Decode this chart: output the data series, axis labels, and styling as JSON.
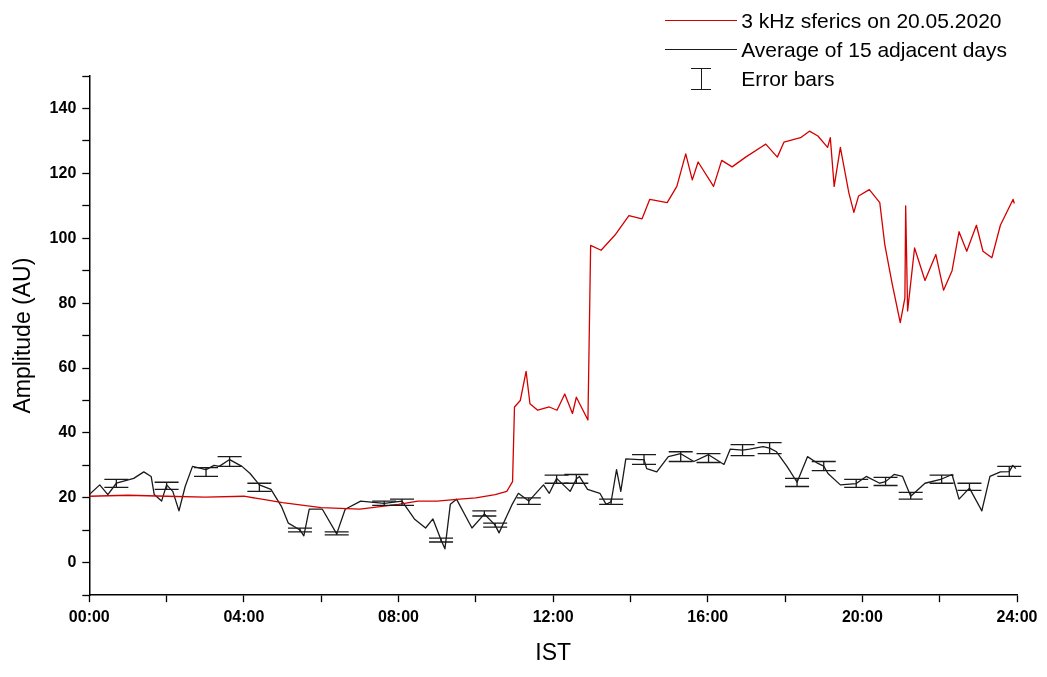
{
  "chart_data": {
    "type": "line",
    "xlabel": "IST",
    "ylabel": "Amplitude (AU)",
    "xlim": [
      0,
      24
    ],
    "xticks": [
      {
        "value": 0,
        "label": "00:00"
      },
      {
        "value": 2,
        "label": null
      },
      {
        "value": 4,
        "label": "04:00"
      },
      {
        "value": 6,
        "label": null
      },
      {
        "value": 8,
        "label": "08:00"
      },
      {
        "value": 10,
        "label": null
      },
      {
        "value": 12,
        "label": "12:00"
      },
      {
        "value": 14,
        "label": null
      },
      {
        "value": 16,
        "label": "16:00"
      },
      {
        "value": 18,
        "label": null
      },
      {
        "value": 20,
        "label": "20:00"
      },
      {
        "value": 22,
        "label": null
      },
      {
        "value": 24,
        "label": "24:00"
      }
    ],
    "ylim": [
      -10,
      150
    ],
    "yticks": [
      {
        "value": -10,
        "label": null
      },
      0,
      {
        "value": 10,
        "label": null
      },
      20,
      {
        "value": 30,
        "label": null
      },
      40,
      {
        "value": 50,
        "label": null
      },
      60,
      {
        "value": 70,
        "label": null
      },
      80,
      {
        "value": 90,
        "label": null
      },
      100,
      {
        "value": 110,
        "label": null
      },
      120,
      {
        "value": 130,
        "label": null
      },
      140,
      {
        "value": 150,
        "label": null
      }
    ],
    "grid": false,
    "legend": "top right",
    "marker": "none",
    "line_style": "solid",
    "annotations": [
      "Error bars"
    ],
    "series": [
      {
        "name": "3 kHz sferics on 20.05.2020",
        "color": "#d40000",
        "x": [
          0,
          1,
          2,
          3,
          4,
          4.5,
          5,
          6,
          7,
          8,
          8.5,
          9,
          9.5,
          10,
          10.5,
          10.8,
          10.95,
          11.0,
          11.15,
          11.3,
          11.4,
          11.6,
          11.9,
          12.1,
          12.3,
          12.5,
          12.6,
          12.9,
          12.97,
          13.24,
          13.6,
          13.96,
          14.3,
          14.5,
          14.95,
          15.2,
          15.43,
          15.6,
          15.75,
          16.15,
          16.36,
          16.63,
          16.98,
          17.5,
          17.8,
          17.97,
          18.4,
          18.63,
          18.85,
          19.1,
          19.17,
          19.27,
          19.43,
          19.65,
          19.78,
          19.9,
          20.18,
          20.45,
          20.58,
          20.77,
          20.98,
          21.1,
          21.12,
          21.17,
          21.35,
          21.62,
          21.9,
          22.1,
          22.32,
          22.5,
          22.7,
          22.95,
          23.12,
          23.35,
          23.57,
          23.9,
          23.93
        ],
        "values": [
          20.5,
          20.8,
          20.5,
          20.2,
          20.5,
          19.5,
          18.5,
          17.0,
          16.5,
          18.0,
          19.0,
          19.0,
          19.5,
          20.0,
          21.0,
          22.0,
          25.0,
          48.0,
          50.0,
          59.0,
          49.0,
          47.0,
          48.0,
          47.0,
          52.0,
          46.0,
          51.0,
          44.0,
          97.8,
          96.3,
          101,
          107,
          106,
          112,
          111,
          116,
          126,
          118,
          123.5,
          116,
          124,
          122,
          125,
          129,
          125,
          129.6,
          131,
          133,
          131.5,
          128,
          131,
          116,
          128,
          114,
          108,
          113,
          115,
          111,
          98,
          86,
          74,
          81.6,
          110,
          77.6,
          97,
          87,
          95,
          84,
          90,
          102,
          96,
          104,
          96,
          94,
          104,
          112,
          110.7
        ]
      },
      {
        "name": "Average of 15 adjacent days",
        "color": "#1a1a1a",
        "x": [
          0,
          0.27,
          0.48,
          0.7,
          1.15,
          1.41,
          1.6,
          1.68,
          1.87,
          2.0,
          2.16,
          2.32,
          2.48,
          2.67,
          3.02,
          3.23,
          3.36,
          3.63,
          3.95,
          4.16,
          4.4,
          4.7,
          4.97,
          5.15,
          5.45,
          5.55,
          5.69,
          6.03,
          6.4,
          6.62,
          7.02,
          7.63,
          8.09,
          8.41,
          8.7,
          8.89,
          9.1,
          9.2,
          9.34,
          9.5,
          9.9,
          10.22,
          10.5,
          10.6,
          10.94,
          11.1,
          11.37,
          11.75,
          11.9,
          12.09,
          12.44,
          12.6,
          12.68,
          12.89,
          13.21,
          13.37,
          13.5,
          13.64,
          13.75,
          13.88,
          14.23,
          14.35,
          14.42,
          14.68,
          14.98,
          15.3,
          15.64,
          16.02,
          16.42,
          16.58,
          16.9,
          17.08,
          17.43,
          17.6,
          17.78,
          18.05,
          18.31,
          18.58,
          18.85,
          19.0,
          19.11,
          19.43,
          19.84,
          20.1,
          20.45,
          20.6,
          20.82,
          21.04,
          21.25,
          21.62,
          22.05,
          22.32,
          22.5,
          22.77,
          23.09,
          23.3,
          23.57,
          23.8,
          23.89,
          23.97
        ],
        "values": [
          21,
          24,
          21,
          24.5,
          26,
          28,
          26.6,
          21,
          19,
          24,
          22,
          16,
          23.5,
          29.7,
          28.7,
          30,
          29.7,
          31.8,
          29.7,
          27.5,
          24,
          22.6,
          17.4,
          12.2,
          10.1,
          8.3,
          16.5,
          16.5,
          8.9,
          16.5,
          19,
          18.3,
          19,
          13.5,
          10.7,
          13.5,
          7,
          4.3,
          18,
          19.6,
          10.7,
          15,
          11.6,
          9.2,
          18,
          21.4,
          19,
          24,
          21.4,
          26,
          22,
          25.8,
          26.6,
          22.6,
          21.4,
          18,
          18.8,
          28.7,
          22,
          32,
          31.8,
          31.8,
          29,
          28,
          32.7,
          33.6,
          31.2,
          33.3,
          30.3,
          35,
          34.7,
          35,
          35.8,
          35.3,
          34.2,
          29.7,
          24.8,
          32.7,
          30.6,
          29.8,
          27.5,
          24,
          24.4,
          26.6,
          24.5,
          25,
          27.2,
          26.6,
          20.5,
          24.5,
          25.8,
          27.2,
          19.6,
          23,
          16,
          26.6,
          28,
          28.1,
          30,
          29
        ],
        "errors": [
          null,
          null,
          null,
          [
            23.2,
            25.7
          ],
          null,
          null,
          null,
          null,
          null,
          [
            22.6,
            24.8
          ],
          null,
          null,
          null,
          null,
          [
            26.6,
            29.3
          ],
          null,
          null,
          [
            29.7,
            32.7
          ],
          null,
          null,
          [
            22,
            24.5
          ],
          null,
          null,
          null,
          [
            9.5,
            10.7
          ],
          null,
          null,
          null,
          [
            8.6,
            9.5
          ],
          null,
          null,
          [
            17.7,
            19
          ],
          [
            17.7,
            19.6
          ],
          null,
          null,
          null,
          [
            6.4,
            7.6
          ],
          null,
          null,
          null,
          null,
          [
            14.4,
            16
          ],
          [
            11,
            12.2
          ],
          null,
          null,
          null,
          [
            18,
            20
          ],
          null,
          null,
          [
            24.5,
            27
          ],
          null,
          [
            24.5,
            27.2
          ],
          null,
          null,
          null,
          null,
          [
            18,
            19.6
          ],
          null,
          null,
          null,
          null,
          [
            30.3,
            33.3
          ],
          null,
          null,
          null,
          [
            31.2,
            34.2
          ],
          null,
          [
            30.9,
            33.6
          ],
          null,
          null,
          [
            33,
            36.4
          ],
          null,
          null,
          [
            33.6,
            37
          ],
          null,
          null,
          [
            23.5,
            26
          ],
          null,
          null,
          [
            28.4,
            31.2
          ],
          null,
          null,
          [
            23.2,
            25.7
          ],
          null,
          null,
          [
            23.8,
            26.3
          ],
          null,
          null,
          [
            19.6,
            21.7
          ],
          null,
          [
            24.5,
            27
          ],
          null,
          null,
          [
            22.3,
            24.5
          ],
          null,
          null,
          null,
          [
            26.6,
            29.7
          ],
          null,
          null
        ]
      }
    ]
  }
}
